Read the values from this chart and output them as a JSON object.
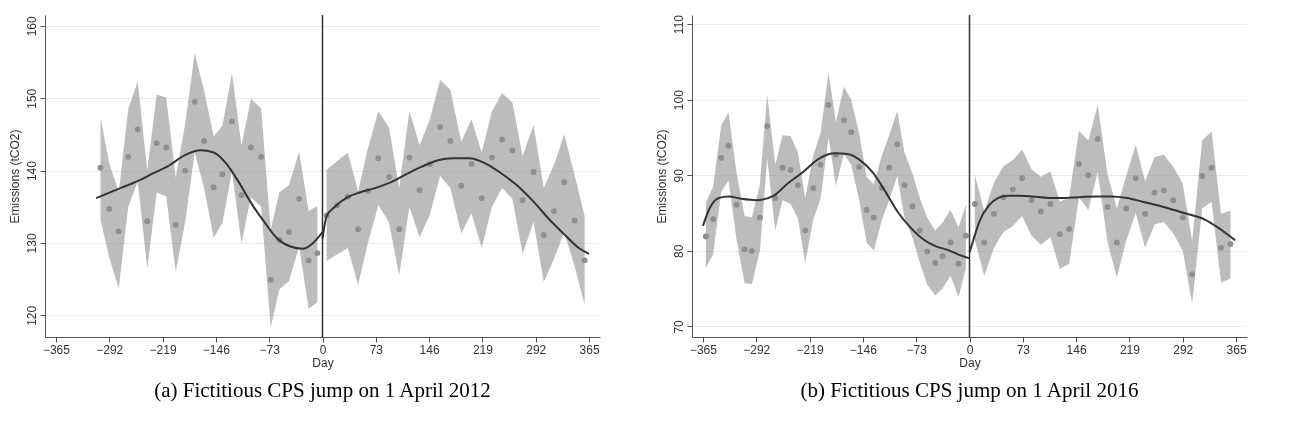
{
  "chart_data": [
    {
      "type": "scatter",
      "title": "(a) Fictitious CPS jump on 1 April 2012",
      "xlabel": "Day",
      "ylabel": "Emissions (tCO2)",
      "xlim": [
        -380,
        380
      ],
      "ylim": [
        117,
        161.5
      ],
      "xticks": [
        -365,
        -292,
        -219,
        -146,
        -73,
        0,
        73,
        146,
        219,
        292,
        365
      ],
      "yticks": [
        120,
        130,
        140,
        150,
        160
      ],
      "grid": "y",
      "series": [
        {
          "marker": "circle",
          "color": "#8f8f8f",
          "x": [
            -304,
            -292,
            -279,
            -266,
            -253,
            -240,
            -227,
            -214,
            -201,
            -188,
            -175,
            -162,
            -149,
            -137,
            -124,
            -111,
            -98,
            -84,
            -71,
            -59,
            -46,
            -32,
            -19,
            -7
          ],
          "values": [
            140.4,
            134.7,
            131.6,
            141.9,
            145.7,
            133.0,
            143.8,
            143.2,
            132.5,
            140.0,
            149.5,
            144.1,
            137.7,
            139.5,
            146.8,
            136.6,
            143.2,
            141.9,
            124.9,
            130.4,
            131.5,
            136.1,
            127.6,
            128.6
          ],
          "upper": [
            147.3,
            141.0,
            137.0,
            148.5,
            152.3,
            140.0,
            150.5,
            150.1,
            139.0,
            146.5,
            156.2,
            151.0,
            144.7,
            146.2,
            153.5,
            143.5,
            149.9,
            148.6,
            131.8,
            137.0,
            138.0,
            142.6,
            134.4,
            135.1
          ],
          "lower": [
            133.2,
            128.0,
            123.7,
            135.0,
            138.5,
            126.5,
            137.0,
            136.4,
            126.0,
            132.9,
            142.5,
            137.5,
            130.7,
            132.8,
            139.8,
            130.0,
            136.3,
            135.0,
            118.3,
            123.6,
            124.7,
            129.5,
            120.9,
            121.8
          ]
        },
        {
          "marker": "circle",
          "color": "#8f8f8f",
          "x": [
            5.7,
            19.8,
            34.7,
            48.8,
            62.4,
            76.5,
            91,
            105,
            119,
            133,
            147,
            161,
            175,
            190,
            204,
            218,
            232,
            246,
            260,
            274,
            289,
            303,
            317,
            331,
            345,
            359
          ],
          "values": [
            133.8,
            135.2,
            136.4,
            131.9,
            137.2,
            141.7,
            139.1,
            131.9,
            141.8,
            137.3,
            140.9,
            146.0,
            144.1,
            137.9,
            140.9,
            136.2,
            141.8,
            144.3,
            142.8,
            135.9,
            139.8,
            131.1,
            134.4,
            138.4,
            133.1,
            127.6
          ],
          "upper": [
            140.1,
            141.3,
            142.5,
            137.1,
            143.2,
            148.2,
            146.0,
            137.6,
            148.2,
            143.5,
            147.1,
            152.5,
            151.2,
            144.0,
            147.1,
            142.5,
            148.2,
            150.7,
            149.4,
            142.0,
            146.3,
            137.6,
            140.8,
            145.0,
            139.5,
            133.7
          ],
          "lower": [
            127.5,
            128.4,
            129.3,
            124.2,
            130.1,
            135.2,
            132.9,
            125.5,
            135.0,
            130.8,
            133.9,
            139.3,
            137.6,
            131.3,
            134.1,
            129.3,
            135.0,
            137.6,
            136.1,
            128.5,
            132.9,
            124.6,
            127.8,
            131.5,
            126.8,
            121.5
          ]
        },
        {
          "type": "line",
          "line_style": "solid",
          "color": "#333333",
          "x": [
            -310,
            -276,
            -254,
            -232,
            -210,
            -189,
            -167,
            -149,
            -132,
            -114,
            -97,
            -79,
            -62,
            -44,
            -27,
            -14,
            0
          ],
          "values": [
            136.2,
            137.6,
            138.5,
            139.6,
            140.7,
            142.1,
            142.8,
            142.5,
            141.0,
            138.3,
            135.4,
            132.8,
            130.6,
            129.5,
            129.2,
            129.9,
            131.5
          ]
        },
        {
          "type": "line",
          "line_style": "solid",
          "color": "#333333",
          "x": [
            0,
            5.7,
            17,
            34,
            52,
            69.5,
            91.5,
            113,
            135,
            157,
            179,
            201,
            223,
            245,
            267,
            289,
            311,
            333,
            351,
            365
          ],
          "values": [
            130.6,
            133.7,
            135.0,
            136.3,
            137.0,
            137.5,
            138.3,
            139.4,
            140.5,
            141.4,
            141.7,
            141.7,
            141.0,
            139.6,
            137.9,
            135.7,
            133.2,
            131.0,
            129.3,
            128.5
          ]
        }
      ],
      "ref_lines": [
        {
          "axis": "x",
          "value": 0,
          "color": "#333333",
          "line_style": "solid"
        }
      ]
    },
    {
      "type": "scatter",
      "title": "(b) Fictitious CPS jump on 1 April 2016",
      "xlabel": "Day",
      "ylabel": "Emissions (tCO2)",
      "xlim": [
        -380,
        380
      ],
      "ylim": [
        68.6,
        111.2
      ],
      "xticks": [
        -365,
        -292,
        -219,
        -146,
        -73,
        0,
        73,
        146,
        219,
        292,
        365
      ],
      "yticks": [
        70,
        80,
        90,
        100,
        110
      ],
      "grid": "y",
      "series": [
        {
          "marker": "circle",
          "color": "#8f8f8f",
          "x": [
            -361,
            -351,
            -340,
            -330,
            -319,
            -308,
            -298,
            -287,
            -277,
            -266,
            -256,
            -245,
            -235,
            -225,
            -214,
            -204,
            -193,
            -183,
            -172,
            -162,
            -151,
            -141,
            -131,
            -120,
            -110,
            -99,
            -89,
            -78,
            -68,
            -58,
            -47,
            -37,
            -26,
            -15,
            -5
          ],
          "values": [
            81.9,
            84.2,
            92.3,
            93.9,
            86.1,
            80.2,
            80.0,
            84.4,
            96.5,
            87.0,
            91.0,
            90.7,
            88.7,
            82.7,
            88.3,
            91.4,
            99.3,
            92.7,
            97.3,
            95.7,
            91.1,
            85.4,
            84.4,
            88.3,
            91.0,
            94.1,
            88.7,
            85.9,
            82.7,
            79.9,
            78.4,
            79.3,
            81.1,
            78.3,
            82.0
          ],
          "upper": [
            86.4,
            88.5,
            96.6,
            98.3,
            90.3,
            84.6,
            84.4,
            88.8,
            100.7,
            91.4,
            95.3,
            95.2,
            93.0,
            87.0,
            92.6,
            95.6,
            103.6,
            97.0,
            101.7,
            100.0,
            95.5,
            89.8,
            88.8,
            92.6,
            95.3,
            98.5,
            93.0,
            90.2,
            87.0,
            84.4,
            82.7,
            83.7,
            85.4,
            83.1,
            86.1
          ],
          "lower": [
            77.7,
            79.6,
            87.8,
            89.3,
            81.5,
            75.7,
            75.6,
            80.0,
            92.2,
            82.7,
            86.7,
            86.2,
            84.3,
            78.4,
            84.1,
            86.9,
            95.0,
            88.6,
            92.8,
            91.4,
            86.7,
            81.1,
            80.0,
            84.1,
            86.7,
            89.9,
            84.4,
            81.7,
            78.4,
            75.5,
            74.1,
            75.0,
            76.7,
            73.9,
            77.7
          ]
        },
        {
          "marker": "circle",
          "color": "#8f8f8f",
          "x": [
            7.3,
            20.2,
            33.5,
            46.4,
            59.3,
            72.1,
            85,
            97.9,
            110.8,
            123.7,
            136.5,
            149.9,
            162.7,
            175.6,
            188.9,
            201.8,
            214.7,
            227.6,
            240.5,
            253.3,
            266.2,
            279.1,
            292,
            304.9,
            318.6,
            331.5,
            344.4,
            357.3
          ],
          "values": [
            86.2,
            81.1,
            84.9,
            87.1,
            88.1,
            89.6,
            86.7,
            85.2,
            86.2,
            82.2,
            82.9,
            91.5,
            90.0,
            94.8,
            85.8,
            81.1,
            85.6,
            89.6,
            84.9,
            87.7,
            88.0,
            86.7,
            84.4,
            76.9,
            89.9,
            91.0,
            80.4,
            80.9
          ],
          "upper": [
            90.1,
            85.2,
            89.0,
            91.2,
            92.0,
            93.4,
            90.8,
            89.8,
            90.5,
            86.5,
            87.1,
            95.9,
            94.6,
            99.3,
            90.2,
            85.6,
            90.0,
            94.0,
            89.2,
            92.4,
            92.7,
            91.1,
            88.9,
            81.3,
            94.6,
            95.8,
            84.9,
            85.3
          ],
          "lower": [
            81.4,
            76.7,
            80.4,
            82.5,
            83.3,
            84.6,
            82.0,
            80.8,
            81.8,
            77.6,
            78.3,
            87.1,
            85.4,
            90.4,
            81.2,
            76.5,
            81.4,
            85.0,
            80.4,
            83.5,
            83.8,
            82.3,
            80.0,
            73.0,
            85.6,
            86.5,
            75.8,
            76.3
          ]
        },
        {
          "type": "line",
          "line_style": "solid",
          "color": "#333333",
          "x": [
            -365,
            -356,
            -343,
            -330,
            -313,
            -292,
            -270,
            -249,
            -227,
            -206,
            -184,
            -167,
            -150,
            -132,
            -115,
            -98,
            -81,
            -63,
            -46,
            -29,
            -15,
            0
          ],
          "values": [
            83.3,
            85.6,
            87.0,
            87.2,
            86.9,
            86.7,
            87.2,
            88.9,
            90.5,
            92.2,
            92.9,
            92.8,
            92.0,
            90.3,
            87.8,
            85.1,
            83.1,
            81.5,
            80.6,
            80.1,
            79.5,
            79.0
          ]
        },
        {
          "type": "line",
          "line_style": "solid",
          "color": "#333333",
          "x": [
            0,
            5.2,
            13.7,
            26.6,
            39.5,
            52.4,
            69.6,
            86.7,
            108,
            129.7,
            151,
            172.6,
            194,
            215.6,
            237,
            258.5,
            280,
            301.4,
            323,
            340,
            353,
            363.7
          ],
          "values": [
            79.8,
            81.4,
            83.9,
            86.0,
            87.0,
            87.3,
            87.3,
            87.2,
            87.0,
            87.0,
            87.1,
            87.2,
            87.2,
            87.0,
            86.5,
            86.0,
            85.4,
            84.8,
            84.1,
            83.1,
            82.2,
            81.4
          ]
        }
      ],
      "ref_lines": [
        {
          "axis": "x",
          "value": 0,
          "color": "#333333",
          "line_style": "solid"
        }
      ]
    }
  ]
}
